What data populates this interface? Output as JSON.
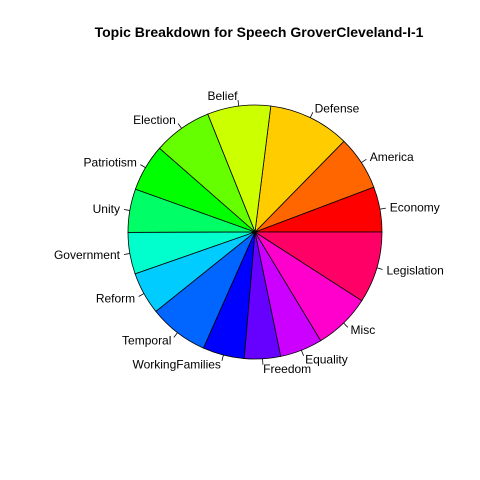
{
  "chart_data": {
    "type": "pie",
    "title": "Topic Breakdown for Speech GroverCleveland-I-1",
    "direction": "counterclockwise",
    "start": "3 o'clock",
    "slices": [
      {
        "label": "Economy",
        "value": 5.0,
        "color": "#FF0000"
      },
      {
        "label": "America",
        "value": 6.0,
        "color": "#FF6600"
      },
      {
        "label": "Defense",
        "value": 9.0,
        "color": "#FFCC00"
      },
      {
        "label": "Belief",
        "value": 7.0,
        "color": "#CCFF00"
      },
      {
        "label": "Election",
        "value": 6.5,
        "color": "#66FF00"
      },
      {
        "label": "Patriotism",
        "value": 5.2,
        "color": "#00FF00"
      },
      {
        "label": "Unity",
        "value": 4.8,
        "color": "#00FF66"
      },
      {
        "label": "Government",
        "value": 4.6,
        "color": "#00FFCC"
      },
      {
        "label": "Reform",
        "value": 4.7,
        "color": "#00CCFF"
      },
      {
        "label": "Temporal",
        "value": 6.6,
        "color": "#0066FF"
      },
      {
        "label": "WorkingFamilies",
        "value": 4.6,
        "color": "#0000FF"
      },
      {
        "label": "Freedom",
        "value": 4.0,
        "color": "#6600FF"
      },
      {
        "label": "Equality",
        "value": 4.7,
        "color": "#CC00FF"
      },
      {
        "label": "Misc",
        "value": 6.3,
        "color": "#FF00CC"
      },
      {
        "label": "Legislation",
        "value": 7.9,
        "color": "#FF0066"
      }
    ]
  }
}
